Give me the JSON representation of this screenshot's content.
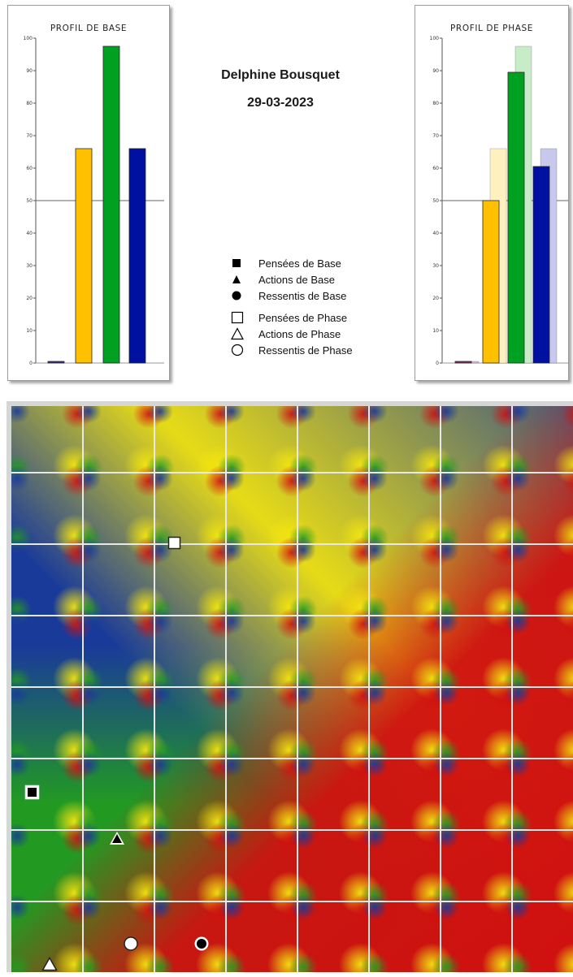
{
  "person": {
    "name": "Delphine Bousquet",
    "date": "29-03-2023"
  },
  "chart_data": [
    {
      "type": "bar",
      "title": "PROFIL DE BASE",
      "yticks": [
        0,
        10,
        20,
        30,
        40,
        50,
        60,
        70,
        80,
        90,
        100
      ],
      "ylim": [
        0,
        100
      ],
      "reference_line": 50,
      "series": [
        {
          "values": [
            0.5,
            66,
            97.5,
            66
          ],
          "colors": [
            "#3a2a88",
            "#ffc000",
            "#00a020",
            "#0010a0"
          ]
        }
      ]
    },
    {
      "type": "bar",
      "title": "PROFIL DE PHASE",
      "yticks": [
        0,
        10,
        20,
        30,
        40,
        50,
        60,
        70,
        80,
        90,
        100
      ],
      "ylim": [
        0,
        100
      ],
      "reference_line": 50,
      "series": [
        {
          "values": [
            0.5,
            66,
            97.5,
            66
          ],
          "colors": [
            "#d8b8d8",
            "#fff0c0",
            "#c8ecc8",
            "#c8c8ec"
          ]
        },
        {
          "values": [
            0.5,
            50,
            89.5,
            60.5
          ],
          "colors": [
            "#8a2a60",
            "#ffc000",
            "#00a020",
            "#0010a0"
          ]
        }
      ]
    }
  ],
  "legend": [
    {
      "label": "Pensées de Base",
      "icon": "filled-square-icon"
    },
    {
      "label": "Actions de Base",
      "icon": "filled-triangle-icon"
    },
    {
      "label": "Ressentis de Base",
      "icon": "filled-circle-icon"
    },
    {
      "label": "Pensées de Phase",
      "icon": "open-square-icon"
    },
    {
      "label": "Actions de Phase",
      "icon": "open-triangle-icon"
    },
    {
      "label": "Ressentis de Phase",
      "icon": "open-circle-icon"
    }
  ],
  "colors": {
    "blue": "#1a3a9a",
    "red": "#d01010",
    "green": "#229a22",
    "yellow": "#f2e410"
  }
}
